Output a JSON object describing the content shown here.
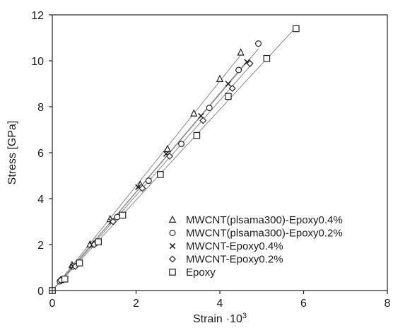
{
  "chart_data": {
    "type": "scatter",
    "title": "",
    "xlabel": "Strain",
    "xlabel_suffix": "·10",
    "xlabel_exponent": "3",
    "ylabel": "Stress [GPa]",
    "xlim": [
      0,
      8
    ],
    "ylim": [
      0,
      12
    ],
    "x_ticks": [
      0,
      2,
      4,
      6,
      8
    ],
    "y_ticks": [
      0,
      2,
      4,
      6,
      8,
      10,
      12
    ],
    "grid": false,
    "legend_position": "bottom-right",
    "fit_lines": true,
    "series": [
      {
        "name": "MWCNT(plsama300)-Epoxy0.4%",
        "marker": "triangle-icon",
        "x": [
          0.0,
          0.2,
          0.47,
          0.9,
          1.38,
          2.1,
          2.75,
          3.38,
          4.0,
          4.5
        ],
        "y": [
          0.0,
          0.45,
          1.1,
          2.0,
          3.1,
          4.6,
          6.15,
          7.7,
          9.2,
          10.35
        ]
      },
      {
        "name": "MWCNT(plsama300)-Epoxy0.2%",
        "marker": "circle-icon",
        "x": [
          0.0,
          0.18,
          0.5,
          1.02,
          1.55,
          2.3,
          3.08,
          3.75,
          4.45,
          4.92
        ],
        "y": [
          0.0,
          0.4,
          1.05,
          2.05,
          3.2,
          4.78,
          6.38,
          7.95,
          9.6,
          10.75
        ]
      },
      {
        "name": "MWCNT-Epoxy0.4%",
        "marker": "cross-icon",
        "x": [
          0.0,
          0.22,
          0.5,
          0.95,
          1.42,
          2.05,
          2.72,
          3.55,
          4.2,
          4.65
        ],
        "y": [
          0.0,
          0.45,
          1.05,
          1.98,
          3.0,
          4.5,
          5.95,
          7.6,
          9.0,
          9.95
        ]
      },
      {
        "name": "MWCNT-Epoxy0.2%",
        "marker": "diamond-icon",
        "x": [
          0.0,
          0.2,
          0.55,
          1.0,
          1.45,
          2.15,
          2.8,
          3.6,
          4.3,
          4.72
        ],
        "y": [
          0.0,
          0.45,
          1.05,
          2.0,
          3.0,
          4.45,
          5.85,
          7.4,
          8.8,
          9.88
        ]
      },
      {
        "name": "Epoxy",
        "marker": "square-icon",
        "x": [
          0.0,
          0.3,
          0.65,
          1.1,
          1.68,
          2.58,
          3.45,
          4.2,
          5.12,
          5.82
        ],
        "y": [
          0.0,
          0.5,
          1.2,
          2.12,
          3.28,
          5.05,
          6.75,
          8.45,
          10.1,
          11.4
        ]
      }
    ]
  }
}
